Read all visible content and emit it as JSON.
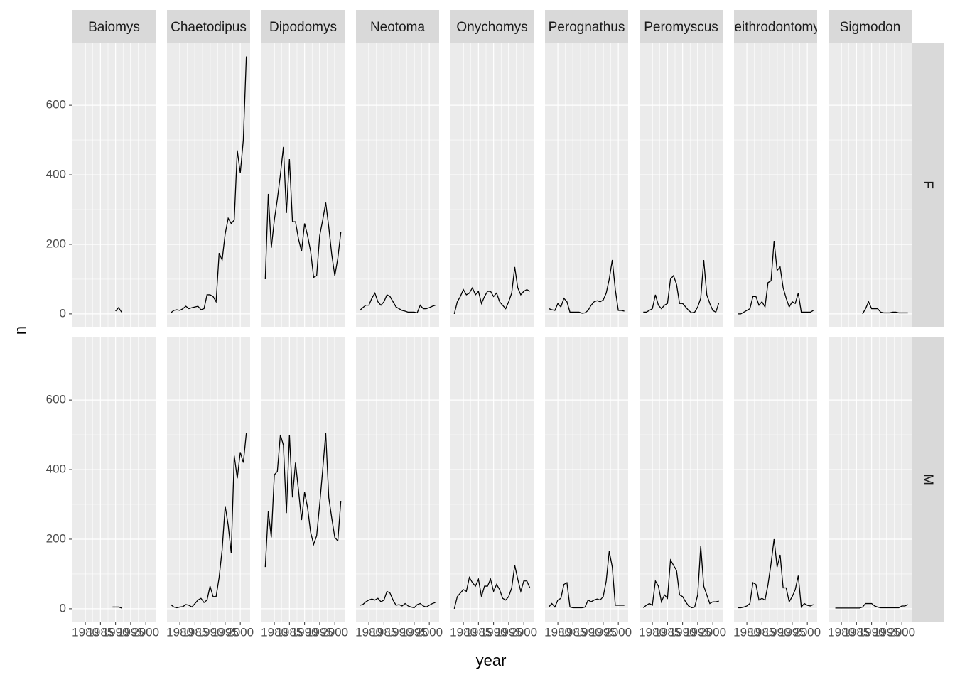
{
  "chart_data": {
    "type": "line",
    "xlabel": "year",
    "ylabel": "n",
    "color": "#000000",
    "grid": true,
    "columns": [
      "Baiomys",
      "Chaetodipus",
      "Dipodomys",
      "Neotoma",
      "Onychomys",
      "Perognathus",
      "Peromyscus",
      "Reithrodontomys",
      "Sigmodon"
    ],
    "rows": [
      "F",
      "M"
    ],
    "x": [
      1977,
      1978,
      1979,
      1980,
      1981,
      1982,
      1983,
      1984,
      1985,
      1986,
      1987,
      1988,
      1989,
      1990,
      1991,
      1992,
      1993,
      1994,
      1995,
      1996,
      1997,
      1998,
      1999,
      2000,
      2001,
      2002
    ],
    "xlim": [
      1975.75,
      2003.25
    ],
    "xticks": [
      1980,
      1985,
      1990,
      1995,
      2000
    ],
    "ylim": [
      -37,
      780
    ],
    "yticks": [
      0,
      200,
      400,
      600
    ],
    "values": [
      [
        [
          null,
          null,
          null,
          null,
          null,
          null,
          null,
          null,
          null,
          null,
          null,
          null,
          null,
          8,
          18,
          5,
          null,
          null,
          null,
          null,
          null,
          null,
          null,
          null,
          null,
          null
        ],
        [
          3,
          10,
          12,
          10,
          15,
          22,
          15,
          18,
          20,
          22,
          12,
          15,
          55,
          55,
          50,
          35,
          175,
          155,
          230,
          275,
          260,
          270,
          470,
          405,
          500,
          740
        ],
        [
          100,
          345,
          190,
          270,
          330,
          400,
          480,
          290,
          445,
          265,
          265,
          215,
          180,
          260,
          225,
          180,
          105,
          110,
          225,
          270,
          320,
          250,
          170,
          110,
          160,
          235
        ],
        [
          10,
          18,
          25,
          25,
          45,
          60,
          35,
          25,
          35,
          55,
          50,
          35,
          20,
          15,
          10,
          8,
          5,
          5,
          5,
          3,
          25,
          15,
          15,
          18,
          22,
          25
        ],
        [
          0,
          35,
          50,
          70,
          55,
          60,
          75,
          55,
          65,
          30,
          50,
          65,
          65,
          50,
          60,
          35,
          25,
          15,
          35,
          60,
          135,
          75,
          55,
          65,
          70,
          65
        ],
        [
          15,
          12,
          10,
          30,
          20,
          45,
          35,
          5,
          5,
          5,
          5,
          2,
          3,
          10,
          25,
          35,
          38,
          35,
          40,
          60,
          100,
          155,
          70,
          10,
          10,
          8
        ],
        [
          5,
          5,
          10,
          15,
          55,
          25,
          15,
          25,
          30,
          100,
          110,
          85,
          30,
          30,
          20,
          10,
          3,
          5,
          20,
          45,
          155,
          55,
          30,
          10,
          5,
          32
        ],
        [
          0,
          0,
          5,
          10,
          15,
          50,
          50,
          25,
          35,
          20,
          90,
          95,
          210,
          125,
          135,
          75,
          45,
          20,
          35,
          30,
          60,
          5,
          5,
          5,
          5,
          10
        ],
        [
          null,
          null,
          null,
          null,
          null,
          null,
          null,
          null,
          null,
          null,
          0,
          15,
          35,
          15,
          15,
          15,
          5,
          3,
          3,
          3,
          5,
          5,
          3,
          3,
          3,
          3
        ]
      ],
      [
        [
          null,
          null,
          null,
          null,
          null,
          null,
          null,
          null,
          null,
          null,
          null,
          null,
          5,
          5,
          5,
          2,
          null,
          null,
          null,
          null,
          null,
          null,
          null,
          null,
          null,
          null
        ],
        [
          12,
          5,
          3,
          5,
          6,
          12,
          10,
          5,
          15,
          25,
          30,
          18,
          25,
          65,
          35,
          35,
          90,
          170,
          295,
          240,
          160,
          440,
          375,
          450,
          420,
          505
        ],
        [
          120,
          280,
          205,
          385,
          395,
          500,
          470,
          275,
          500,
          320,
          420,
          340,
          255,
          335,
          290,
          220,
          185,
          210,
          300,
          400,
          505,
          320,
          260,
          205,
          195,
          310
        ],
        [
          10,
          12,
          20,
          25,
          28,
          25,
          30,
          20,
          25,
          50,
          45,
          25,
          10,
          12,
          8,
          15,
          8,
          5,
          3,
          12,
          15,
          8,
          5,
          10,
          15,
          18
        ],
        [
          0,
          35,
          45,
          55,
          50,
          90,
          75,
          65,
          85,
          35,
          65,
          65,
          85,
          50,
          70,
          55,
          30,
          25,
          35,
          60,
          125,
          85,
          50,
          80,
          80,
          60
        ],
        [
          5,
          15,
          5,
          25,
          30,
          70,
          75,
          5,
          3,
          3,
          3,
          3,
          5,
          25,
          20,
          25,
          28,
          25,
          35,
          80,
          165,
          120,
          10,
          10,
          10,
          10
        ],
        [
          3,
          10,
          15,
          10,
          80,
          65,
          20,
          40,
          30,
          140,
          125,
          110,
          40,
          35,
          20,
          8,
          3,
          5,
          40,
          180,
          65,
          40,
          15,
          20,
          20,
          22
        ],
        [
          3,
          3,
          5,
          8,
          15,
          75,
          70,
          25,
          30,
          25,
          70,
          130,
          200,
          120,
          155,
          60,
          60,
          20,
          35,
          55,
          95,
          5,
          15,
          10,
          8,
          12
        ],
        [
          null,
          2,
          2,
          2,
          2,
          2,
          2,
          2,
          2,
          2,
          5,
          15,
          15,
          15,
          8,
          5,
          3,
          3,
          3,
          3,
          3,
          3,
          3,
          8,
          8,
          12
        ]
      ]
    ]
  }
}
